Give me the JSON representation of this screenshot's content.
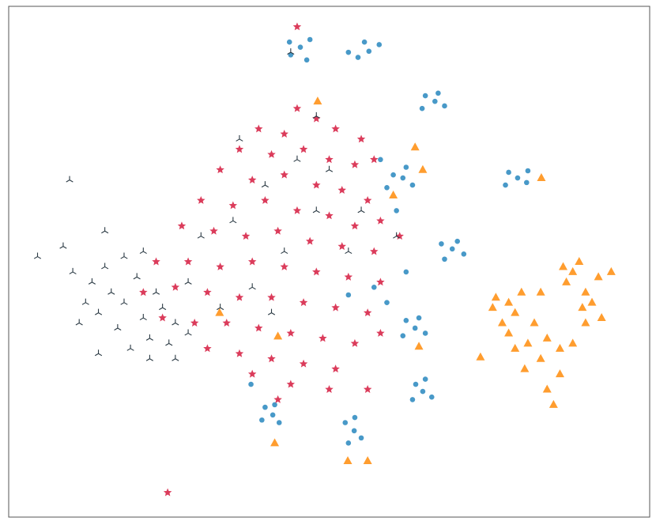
{
  "chart_data": {
    "type": "scatter",
    "xlim": [
      0,
      100
    ],
    "ylim": [
      0,
      100
    ],
    "series": [
      {
        "color": "#1a7fba",
        "marker": "circle",
        "x": [
          45.5,
          44,
          47,
          46.5,
          43.8,
          56.2,
          54.5,
          57.8,
          55.5,
          53,
          66.5,
          65,
          68,
          67,
          64.5,
          79.4,
          78,
          80.8,
          77.5,
          81,
          61.5,
          60,
          63,
          62,
          59,
          69.2,
          67.5,
          71,
          70,
          68,
          63.4,
          62,
          65,
          64,
          61.5,
          64.6,
          63.5,
          66,
          65,
          63,
          41.2,
          40,
          42.2,
          41.5,
          39.5,
          53.9,
          52.5,
          55,
          54,
          53,
          58,
          60.5,
          62,
          59,
          57,
          37.8,
          53
        ],
        "y": [
          92,
          90.5,
          93.5,
          89.5,
          93,
          91.2,
          90,
          92.5,
          93,
          91,
          81.4,
          82.5,
          80.5,
          83,
          80,
          66.4,
          67.5,
          65.5,
          65,
          67.8,
          66.4,
          67,
          65,
          68.5,
          64.5,
          52.5,
          53.5,
          51.5,
          54,
          50.5,
          37,
          38.5,
          36,
          39,
          35.5,
          24.6,
          26,
          23.5,
          27,
          23,
          20,
          21.5,
          18.5,
          22,
          19,
          16.9,
          18.5,
          15.5,
          19.5,
          14.5,
          70,
          60,
          48,
          42,
          45,
          26,
          43.5
        ]
      },
      {
        "color": "#ff8c0a",
        "marker": "triangle",
        "x": [
          76,
          78,
          80,
          79,
          82,
          77,
          84,
          86,
          88,
          81,
          83,
          79,
          86,
          84,
          85,
          87,
          88,
          86.5,
          89,
          92,
          94,
          90,
          91,
          89.5,
          92.5,
          78,
          80.5,
          83,
          75.5,
          90,
          48.2,
          63.4,
          64.6,
          60,
          83.1,
          52.9,
          56,
          73.6,
          42,
          32.9,
          64,
          41.5
        ],
        "y": [
          43,
          42,
          44,
          40,
          38,
          38,
          35,
          33,
          34,
          34,
          31,
          33,
          28,
          25,
          22,
          46,
          48,
          49,
          50,
          47,
          48,
          44,
          42,
          41,
          39,
          36,
          29,
          44,
          41,
          38,
          81.4,
          72.4,
          68,
          63,
          66.4,
          11,
          11,
          31.3,
          35.4,
          40,
          33.4,
          14.5
        ]
      },
      {
        "color": "#d51a3e",
        "marker": "star",
        "x": [
          45,
          48,
          39,
          43,
          51,
          55,
          36,
          41,
          46,
          50,
          54,
          57,
          33,
          38,
          43,
          48,
          52,
          56,
          30,
          35,
          40,
          45,
          50,
          54,
          58,
          27,
          32,
          37,
          42,
          47,
          52,
          57,
          61,
          23,
          28,
          33,
          38,
          43,
          48,
          53,
          58,
          21,
          26,
          31,
          36,
          41,
          46,
          51,
          56,
          24,
          29,
          34,
          39,
          44,
          49,
          54,
          58,
          31,
          36,
          41,
          46,
          51,
          38,
          44,
          50,
          24.8,
          45,
          56,
          42
        ],
        "y": [
          80,
          78,
          76,
          75,
          76,
          74,
          72,
          71,
          72,
          70,
          69,
          70,
          68,
          66,
          67,
          65,
          64,
          62,
          62,
          61,
          62,
          60,
          59,
          57,
          58,
          57,
          56,
          55,
          56,
          54,
          53,
          52,
          55,
          50,
          50,
          49,
          50,
          49,
          48,
          47,
          46,
          44,
          45,
          44,
          43,
          43,
          42,
          41,
          40,
          39,
          38,
          38,
          37,
          36,
          35,
          34,
          36,
          33,
          32,
          31,
          30,
          29,
          28,
          26,
          25,
          4.8,
          96,
          25,
          23
        ]
      },
      {
        "color": "#2b3a44",
        "marker": "tri",
        "x": [
          4.5,
          8.5,
          15,
          9.5,
          11,
          14,
          13,
          15,
          16,
          18,
          20,
          17,
          19,
          22,
          21,
          23,
          24,
          26,
          25,
          28,
          18,
          21,
          12,
          10,
          14,
          22,
          26,
          30,
          35,
          40,
          45,
          38,
          43,
          48,
          33,
          28,
          50,
          55,
          36,
          53,
          44,
          48,
          60.5,
          41
        ],
        "y": [
          51,
          53,
          56,
          66,
          38,
          32,
          46,
          49,
          44,
          42,
          47,
          37,
          33,
          35,
          39,
          44,
          41,
          38,
          34,
          36,
          51,
          52,
          42,
          48,
          40,
          31,
          31,
          55,
          58,
          65,
          70,
          45,
          52,
          60,
          41,
          46,
          68,
          60,
          74,
          52,
          91,
          78.5,
          55,
          40
        ]
      }
    ]
  }
}
